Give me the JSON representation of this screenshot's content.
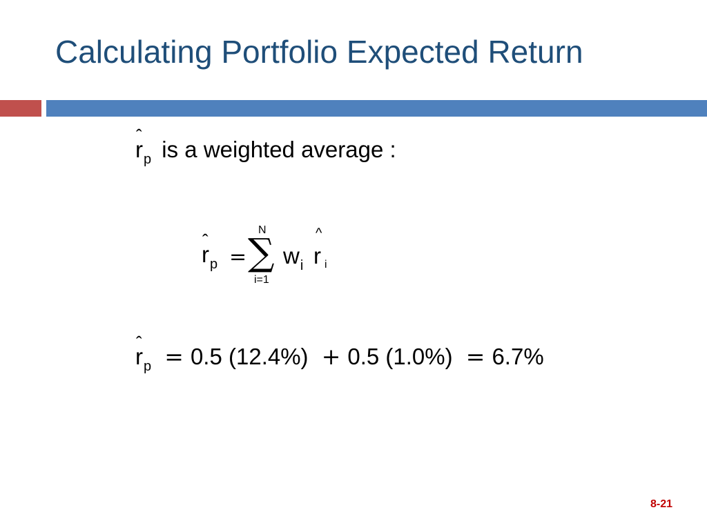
{
  "title": "Calculating Portfolio Expected Return",
  "intro": {
    "symbol": "r",
    "subscript": "p",
    "text": "is a weighted average :"
  },
  "formula": {
    "lhs_symbol": "r",
    "lhs_subscript": "p",
    "equals": "=",
    "sum": "∑",
    "upper_limit": "N",
    "lower_limit": "i=1",
    "weight": "w",
    "weight_subscript": "i",
    "hat": "^",
    "return": "r",
    "return_subscript": "i"
  },
  "calculation": {
    "lhs_symbol": "r",
    "lhs_subscript": "p",
    "equals": "=",
    "term1": "0.5 (12.4%)",
    "plus": "+",
    "term2": "0.5 (1.0%)",
    "equals2": "=",
    "result": "6.7%"
  },
  "slide_number": "8-21",
  "colors": {
    "title": "#1f4e79",
    "accent_red": "#c0504d",
    "accent_blue": "#4f81bd",
    "slide_number": "#c00000"
  }
}
